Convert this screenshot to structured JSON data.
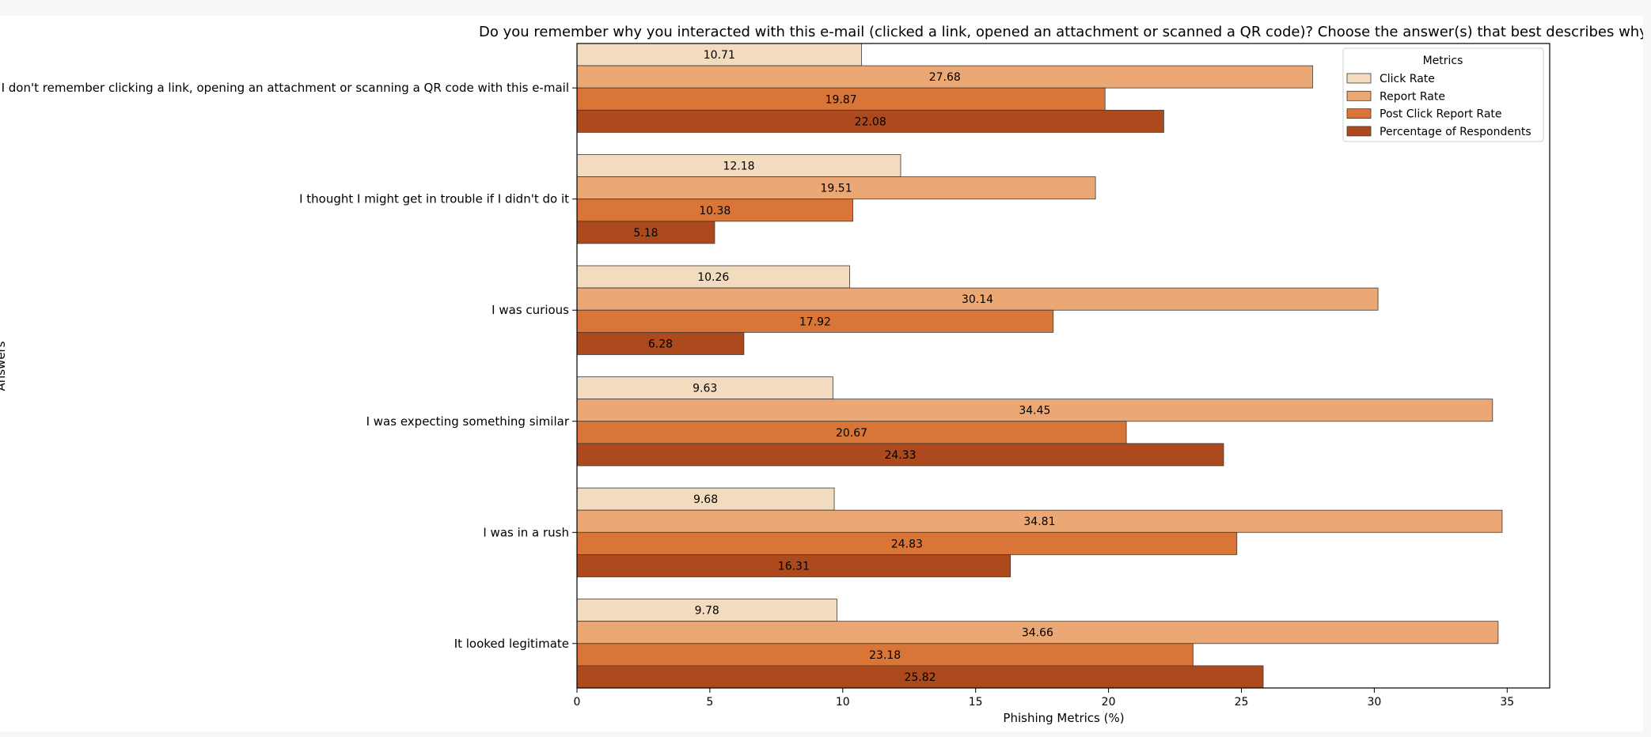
{
  "chart_data": {
    "type": "bar",
    "orientation": "horizontal",
    "title": "Do you remember why you interacted with this e-mail (clicked a link, opened an attachment or scanned a QR code)? Choose the answer(s) that best describes why.",
    "xlabel": "Phishing Metrics (%)",
    "ylabel": "Answers",
    "xlim": [
      0,
      36.6
    ],
    "xticks": [
      0,
      5,
      10,
      15,
      20,
      25,
      30,
      35
    ],
    "grid": false,
    "legend_title": "Metrics",
    "legend_position": "top-right",
    "categories": [
      "I don't remember clicking a link, opening an attachment or scanning a QR code with this e-mail",
      "I thought I might get in trouble if I didn't do it",
      "I was curious",
      "I was expecting something similar",
      "I was in a rush",
      "It looked legitimate"
    ],
    "series": [
      {
        "name": "Click Rate",
        "color": "#f2dbbf",
        "values": [
          10.71,
          12.18,
          10.26,
          9.63,
          9.68,
          9.78
        ]
      },
      {
        "name": "Report Rate",
        "color": "#eba874",
        "values": [
          27.68,
          19.51,
          30.14,
          34.45,
          34.81,
          34.66
        ]
      },
      {
        "name": "Post Click Report Rate",
        "color": "#d87537",
        "values": [
          19.87,
          10.38,
          17.92,
          20.67,
          24.83,
          23.18
        ]
      },
      {
        "name": "Percentage of Respondents",
        "color": "#ac4a1e",
        "values": [
          22.08,
          5.18,
          6.28,
          24.33,
          16.31,
          25.82
        ]
      }
    ]
  }
}
